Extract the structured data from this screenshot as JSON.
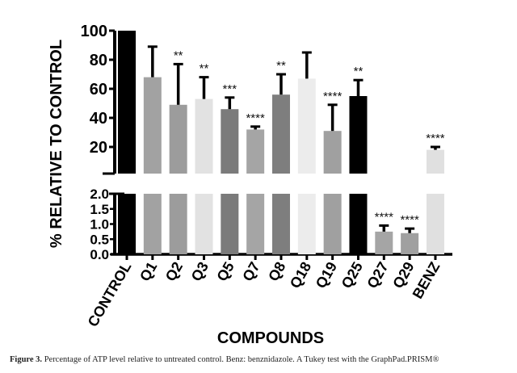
{
  "chart_data": {
    "type": "bar",
    "ylabel": "% RELATIVE TO CONTROL",
    "xlabel": "COMPOUNDS",
    "broken_axis": true,
    "upper_ylim": [
      0,
      100
    ],
    "upper_ticks": [
      "100",
      "80",
      "60",
      "40",
      "20"
    ],
    "upper_tick_values": [
      100,
      80,
      60,
      40,
      20
    ],
    "lower_ylim": [
      0,
      2
    ],
    "lower_ticks": [
      "2.0",
      "1.5",
      "1.0",
      "0.5",
      "0.0"
    ],
    "lower_tick_values": [
      2,
      1.5,
      1,
      0.5,
      0
    ],
    "grid": false,
    "categories": [
      "CONTROL",
      "Q1",
      "Q2",
      "Q3",
      "Q5",
      "Q7",
      "Q8",
      "Q18",
      "Q19",
      "Q25",
      "Q27",
      "Q29",
      "BENZ"
    ],
    "values": [
      100,
      68,
      49,
      53,
      46,
      32,
      56,
      67,
      31,
      55,
      0.75,
      0.7,
      18
    ],
    "error_upper": [
      null,
      89,
      77,
      68,
      54,
      34,
      70,
      85,
      49,
      66,
      0.95,
      0.85,
      20
    ],
    "significance": [
      "",
      "",
      "**",
      "**",
      "***",
      "****",
      "**",
      "",
      "****",
      "**",
      "****",
      "****",
      "****"
    ],
    "colors": [
      "#000000",
      "#a2a2a2",
      "#9c9c9c",
      "#e2e2e2",
      "#7b7b7b",
      "#a5a5a5",
      "#7e7e7e",
      "#ececec",
      "#a0a0a0",
      "#000000",
      "#a5a5a5",
      "#a0a0a0",
      "#e0e0e0"
    ]
  },
  "caption": {
    "label": "Figure 3.",
    "text": " Percentage of ATP level relative to untreated control. Benz: benznidazole. A Tukey test with the GraphPad.PRISM®"
  }
}
